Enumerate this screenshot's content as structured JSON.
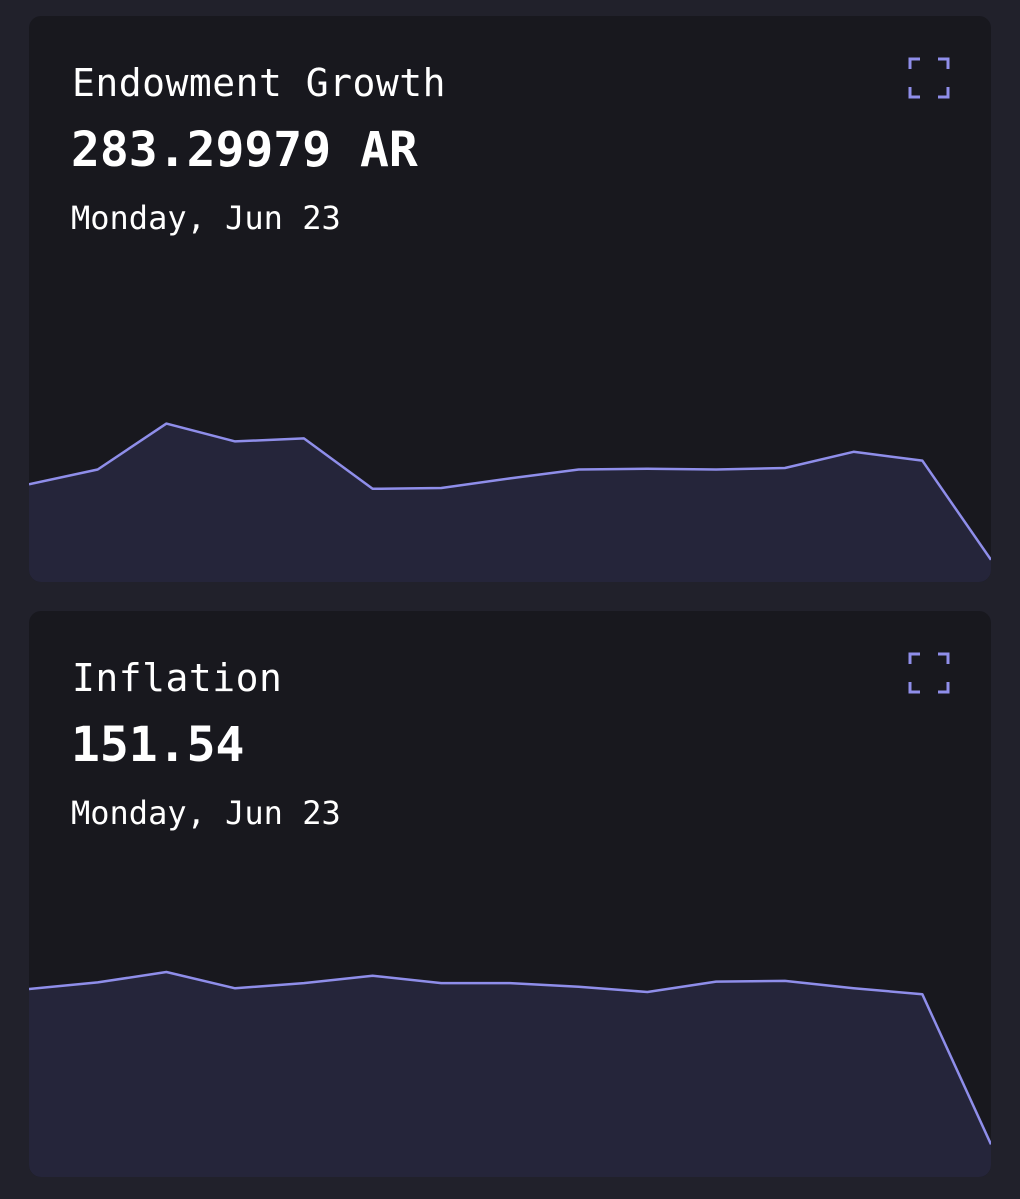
{
  "colors": {
    "page_background": "#21212b",
    "card_background": "#18181e",
    "line": "#8f8eea",
    "area_fill": "#25253a",
    "text": "#ffffff"
  },
  "icons": {
    "expand": "expand-corners-icon"
  },
  "cards": [
    {
      "title": "Endowment Growth",
      "value": "283.29979 AR",
      "date": "Monday, Jun 23"
    },
    {
      "title": "Inflation",
      "value": "151.54",
      "date": "Monday, Jun 23"
    }
  ],
  "chart_data": [
    {
      "type": "area",
      "title": "Endowment Growth",
      "x": [
        0,
        1,
        2,
        3,
        4,
        5,
        6,
        7,
        8,
        9,
        10,
        11,
        12,
        13,
        14
      ],
      "series": [
        {
          "values": [
            3.6,
            4.6,
            7.7,
            6.5,
            6.7,
            3.3,
            3.35,
            4.0,
            4.6,
            4.65,
            4.6,
            4.7,
            5.8,
            5.2,
            -1.5
          ]
        }
      ],
      "ylim": [
        -3,
        17
      ],
      "grid": false,
      "axes_visible": false
    },
    {
      "type": "area",
      "title": "Inflation",
      "x": [
        0,
        1,
        2,
        3,
        4,
        5,
        6,
        7,
        8,
        9,
        10,
        11,
        12,
        13,
        14
      ],
      "series": [
        {
          "values": [
            9.7,
            10.15,
            10.85,
            9.75,
            10.1,
            10.6,
            10.1,
            10.1,
            9.85,
            9.5,
            10.2,
            10.25,
            9.75,
            9.35,
            -0.8
          ]
        }
      ],
      "ylim": [
        -3,
        17
      ],
      "grid": false,
      "axes_visible": false
    }
  ]
}
